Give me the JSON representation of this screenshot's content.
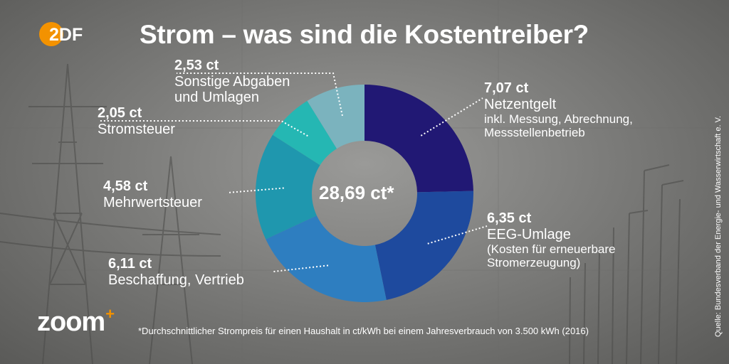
{
  "title": "Strom – was sind die Kostentreiber?",
  "logo_zdf": "2DF",
  "logo_zoom": "zoom",
  "logo_zoom_plus": "+",
  "footnote": "*Durchschnittlicher Strompreis für einen Haushalt in ct/kWh bei einem Jahresverbrauch von 3.500 kWh (2016)",
  "source": "Quelle: Bundesverband der Energie- und Wasserwirtschaft e. V.",
  "chart_data": {
    "type": "pie",
    "donut": true,
    "center_label": "28,69 ct*",
    "total": 28.69,
    "unit": "ct",
    "slices": [
      {
        "value": 7.07,
        "value_label": "7,07 ct",
        "label": "Netzentgelt",
        "sub": [
          "inkl. Messung, Abrechnung,",
          "Messstellenbetrieb"
        ],
        "color": "#211874"
      },
      {
        "value": 6.35,
        "value_label": "6,35 ct",
        "label": "EEG-Umlage",
        "sub": [
          "(Kosten für erneuerbare",
          "Stromerzeugung)"
        ],
        "color": "#1e4a9e"
      },
      {
        "value": 6.11,
        "value_label": "6,11 ct",
        "label": "Beschaffung, Vertrieb",
        "sub": [],
        "color": "#2e7ec0"
      },
      {
        "value": 4.58,
        "value_label": "4,58 ct",
        "label": "Mehrwertsteuer",
        "sub": [],
        "color": "#1f97ae"
      },
      {
        "value": 2.05,
        "value_label": "2,05 ct",
        "label": "Stromsteuer",
        "sub": [],
        "color": "#25b7b3"
      },
      {
        "value": 2.53,
        "value_label": "2,53 ct",
        "label": "Sonstige Abgaben",
        "label2": "und Umlagen",
        "sub": [],
        "color": "#7bb3be"
      }
    ]
  }
}
